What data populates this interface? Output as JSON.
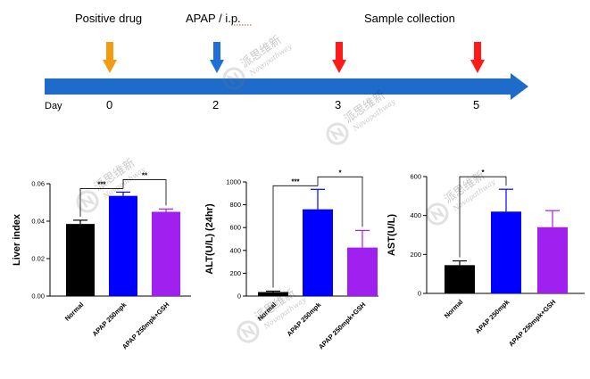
{
  "timeline": {
    "labels": {
      "positive_drug": "Positive drug",
      "apap": "APAP / i.p.",
      "sample_collection": "Sample collection",
      "day": "Day"
    },
    "days": [
      "0",
      "2",
      "3",
      "5"
    ],
    "markers": [
      {
        "day": "0",
        "color": "#F39C12"
      },
      {
        "day": "2",
        "color": "#1E6FD9"
      },
      {
        "day": "3",
        "color": "#FF1A1A"
      },
      {
        "day": "5",
        "color": "#FF1A1A"
      }
    ],
    "bar_color": "#1F6BC9"
  },
  "watermark": {
    "text_cn": "派思维新",
    "text_en": "Novopathway"
  },
  "chart_data": [
    {
      "type": "bar",
      "categories": [
        "Normal",
        "APAP 250mpk",
        "APAP 250mpk+GSH"
      ],
      "values": [
        0.0385,
        0.0535,
        0.045
      ],
      "errors": [
        0.002,
        0.002,
        0.0015
      ],
      "colors": [
        "#000000",
        "#0000FF",
        "#A020F0"
      ],
      "ylabel": "Liver index",
      "ylim": [
        0,
        0.06
      ],
      "yticks": [
        "0.00",
        "0.02",
        "0.04",
        "0.06"
      ],
      "significance": [
        {
          "from": 0,
          "to": 1,
          "label": "***"
        },
        {
          "from": 1,
          "to": 2,
          "label": "**"
        }
      ]
    },
    {
      "type": "bar",
      "categories": [
        "Normal",
        "APAP 250mpk",
        "APAP 250mpk+GSH"
      ],
      "values": [
        35,
        760,
        425
      ],
      "errors": [
        8,
        175,
        150
      ],
      "colors": [
        "#000000",
        "#0000FF",
        "#A020F0"
      ],
      "ylabel": "ALT(U/L) (24hr)",
      "ylim": [
        0,
        1000
      ],
      "yticks": [
        "0",
        "200",
        "400",
        "600",
        "800",
        "1000"
      ],
      "significance": [
        {
          "from": 0,
          "to": 1,
          "label": "***"
        },
        {
          "from": 1,
          "to": 2,
          "label": "*"
        }
      ]
    },
    {
      "type": "bar",
      "categories": [
        "Normal",
        "APAP 250mpk",
        "APAP 250mpk+GSH"
      ],
      "values": [
        145,
        420,
        340
      ],
      "errors": [
        22,
        115,
        85
      ],
      "colors": [
        "#000000",
        "#0000FF",
        "#A020F0"
      ],
      "ylabel": "AST(U/L)",
      "ylim": [
        0,
        600
      ],
      "yticks": [
        "0",
        "200",
        "400",
        "600"
      ],
      "significance": [
        {
          "from": 0,
          "to": 1,
          "label": "*"
        }
      ]
    }
  ]
}
